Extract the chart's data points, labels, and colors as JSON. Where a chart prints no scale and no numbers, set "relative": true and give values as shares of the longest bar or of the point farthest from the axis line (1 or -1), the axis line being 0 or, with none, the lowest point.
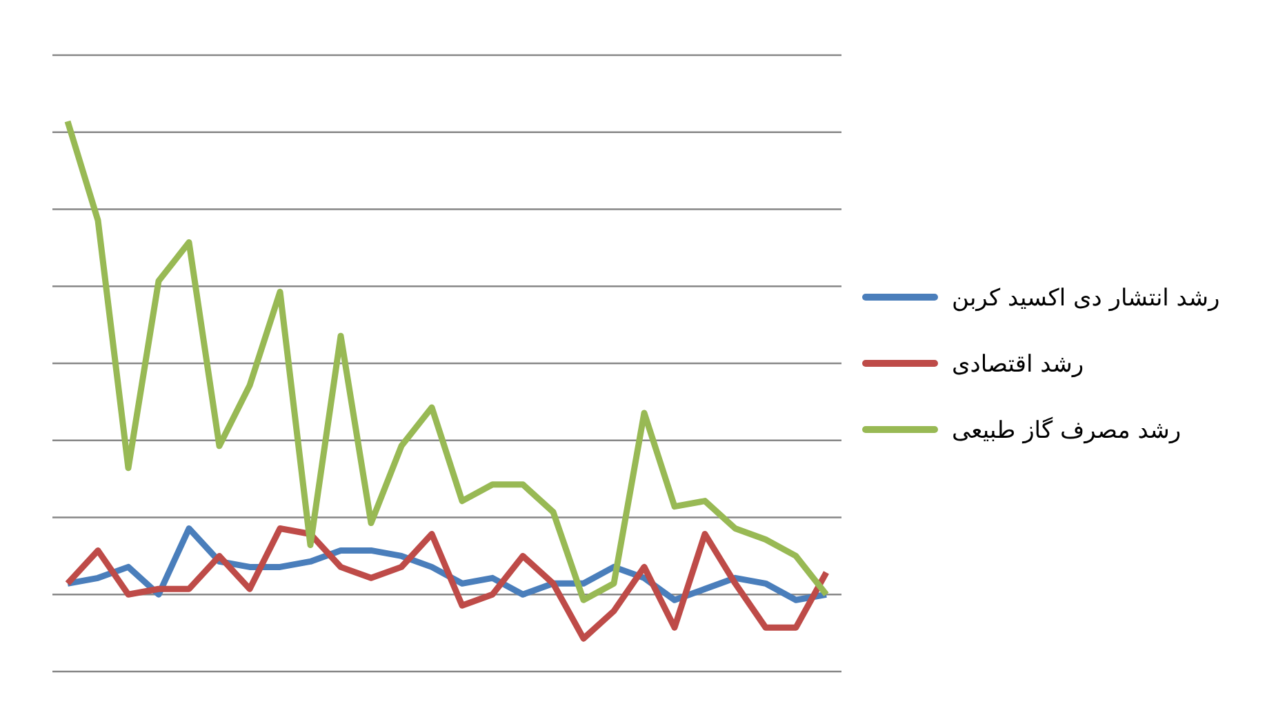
{
  "chart_data": {
    "type": "line",
    "relative": true,
    "grid": "y",
    "legend": "right",
    "categories": [
      null,
      null,
      null,
      null,
      null,
      null,
      null,
      null,
      null,
      null,
      null,
      null,
      null,
      null,
      null,
      null,
      null,
      null,
      null,
      null,
      null,
      null,
      null,
      null,
      null,
      null
    ],
    "series": [
      {
        "name": "رشد انتشار دی اکسید کربن",
        "color": "#4a7ebb",
        "values": [
          0.16,
          0.17,
          0.19,
          0.14,
          0.26,
          0.2,
          0.19,
          0.19,
          0.2,
          0.22,
          0.22,
          0.21,
          0.19,
          0.16,
          0.17,
          0.14,
          0.16,
          0.16,
          0.19,
          0.17,
          0.13,
          0.15,
          0.17,
          0.16,
          0.13,
          0.14
        ]
      },
      {
        "name": "رشد اقتصادی",
        "color": "#be4b48",
        "values": [
          0.16,
          0.22,
          0.14,
          0.15,
          0.15,
          0.21,
          0.15,
          0.26,
          0.25,
          0.19,
          0.17,
          0.19,
          0.25,
          0.12,
          0.14,
          0.21,
          0.16,
          0.06,
          0.11,
          0.19,
          0.08,
          0.25,
          0.16,
          0.08,
          0.08,
          0.18
        ]
      },
      {
        "name": "رشد مصرف گاز طبیعی",
        "color": "#98b954",
        "values": [
          1.0,
          0.82,
          0.37,
          0.71,
          0.78,
          0.41,
          0.52,
          0.69,
          0.23,
          0.61,
          0.27,
          0.41,
          0.48,
          0.31,
          0.34,
          0.34,
          0.29,
          0.13,
          0.16,
          0.47,
          0.3,
          0.31,
          0.26,
          0.24,
          0.21,
          0.14
        ]
      }
    ]
  }
}
